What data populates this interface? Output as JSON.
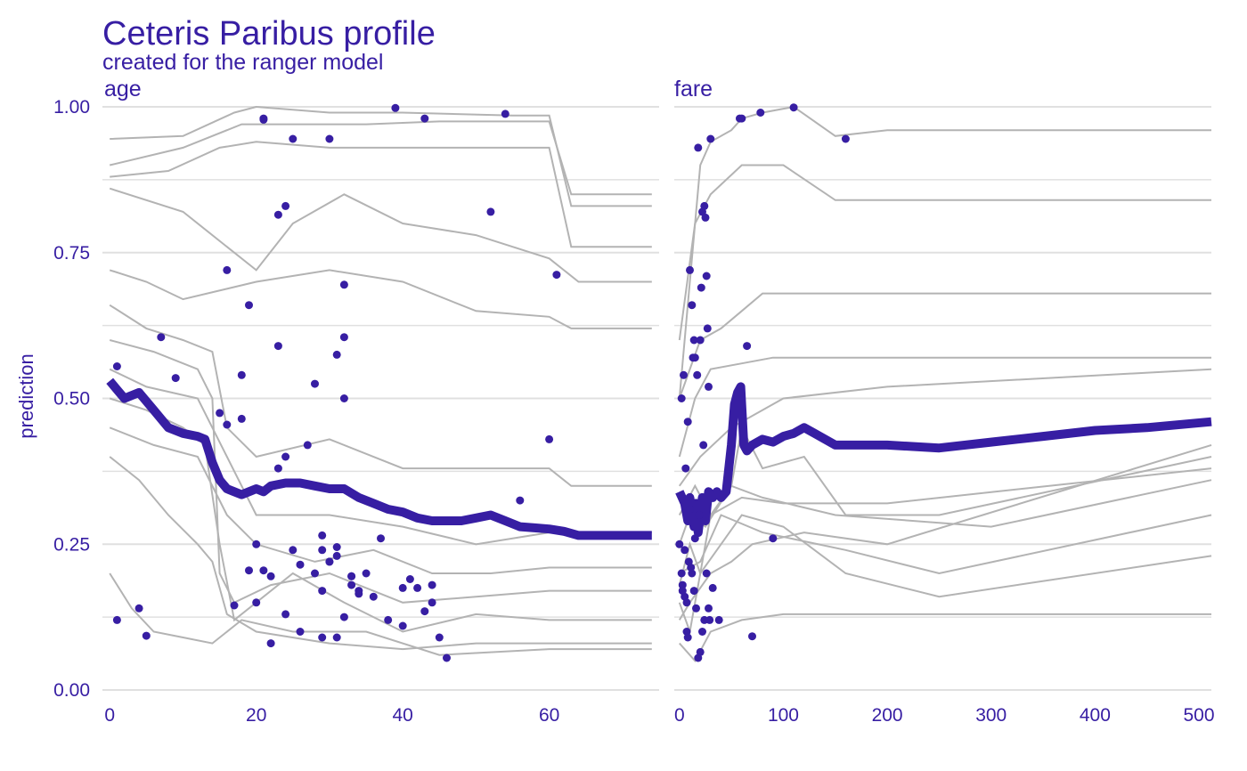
{
  "chart_data": {
    "type": "line",
    "title": "Ceteris Paribus profile",
    "subtitle": "created for the ranger model",
    "ylabel": "prediction",
    "colors": {
      "text": "#371EA3",
      "profile_line": "#371EA3",
      "ice_line": "#B3B3B3",
      "grid": "#E0E0E0"
    },
    "panels": [
      {
        "label": "age",
        "xlim": [
          -1,
          75
        ],
        "ylim": [
          0,
          1
        ],
        "x_ticks": [
          0,
          20,
          40,
          60
        ],
        "y_ticks": [
          "0.00",
          "0.25",
          "0.50",
          "0.75",
          "1.00"
        ],
        "mean_profile": {
          "x": [
            0,
            1,
            2,
            4,
            6,
            8,
            10,
            12,
            13,
            14,
            15,
            16,
            17,
            18,
            19,
            20,
            21,
            22,
            24,
            26,
            28,
            30,
            32,
            34,
            36,
            38,
            40,
            42,
            44,
            46,
            48,
            50,
            52,
            54,
            56,
            58,
            60,
            62,
            64,
            66,
            70,
            74
          ],
          "y": [
            0.53,
            0.515,
            0.5,
            0.51,
            0.48,
            0.45,
            0.44,
            0.435,
            0.43,
            0.39,
            0.36,
            0.345,
            0.34,
            0.335,
            0.34,
            0.345,
            0.34,
            0.35,
            0.355,
            0.355,
            0.35,
            0.345,
            0.345,
            0.33,
            0.32,
            0.31,
            0.305,
            0.295,
            0.29,
            0.29,
            0.29,
            0.295,
            0.3,
            0.29,
            0.28,
            0.278,
            0.276,
            0.272,
            0.265,
            0.265,
            0.265,
            0.265
          ]
        },
        "ice_sample": [
          {
            "x": [
              0,
              10,
              17,
              20,
              30,
              40,
              55,
              60,
              63,
              74
            ],
            "y": [
              0.945,
              0.95,
              0.99,
              1.0,
              0.99,
              0.99,
              0.985,
              0.985,
              0.83,
              0.83
            ]
          },
          {
            "x": [
              0,
              10,
              18,
              25,
              35,
              45,
              60,
              63,
              74
            ],
            "y": [
              0.9,
              0.93,
              0.97,
              0.97,
              0.97,
              0.975,
              0.975,
              0.85,
              0.85
            ]
          },
          {
            "x": [
              0,
              8,
              15,
              20,
              30,
              40,
              50,
              60,
              63,
              74
            ],
            "y": [
              0.88,
              0.89,
              0.93,
              0.94,
              0.93,
              0.93,
              0.93,
              0.93,
              0.76,
              0.76
            ]
          },
          {
            "x": [
              0,
              10,
              20,
              25,
              32,
              40,
              50,
              60,
              64,
              74
            ],
            "y": [
              0.86,
              0.82,
              0.72,
              0.8,
              0.85,
              0.8,
              0.78,
              0.74,
              0.7,
              0.7
            ]
          },
          {
            "x": [
              0,
              5,
              10,
              14,
              16,
              20,
              30,
              40,
              50,
              60,
              63,
              74
            ],
            "y": [
              0.66,
              0.62,
              0.6,
              0.58,
              0.45,
              0.4,
              0.43,
              0.38,
              0.38,
              0.38,
              0.35,
              0.35
            ]
          },
          {
            "x": [
              0,
              6,
              12,
              14,
              15,
              17,
              22,
              30,
              40,
              50,
              60,
              63,
              74
            ],
            "y": [
              0.6,
              0.58,
              0.55,
              0.5,
              0.2,
              0.15,
              0.18,
              0.2,
              0.15,
              0.16,
              0.17,
              0.17,
              0.17
            ]
          },
          {
            "x": [
              0,
              5,
              10,
              13,
              15,
              17,
              25,
              32,
              40,
              50,
              60,
              63,
              74
            ],
            "y": [
              0.5,
              0.48,
              0.45,
              0.42,
              0.25,
              0.12,
              0.2,
              0.15,
              0.1,
              0.13,
              0.12,
              0.12,
              0.12
            ]
          },
          {
            "x": [
              0,
              4,
              8,
              12,
              14,
              16,
              20,
              30,
              40,
              50,
              60,
              63,
              74
            ],
            "y": [
              0.4,
              0.36,
              0.3,
              0.25,
              0.22,
              0.13,
              0.1,
              0.08,
              0.07,
              0.08,
              0.08,
              0.08,
              0.08
            ]
          },
          {
            "x": [
              0,
              3,
              6,
              10,
              14,
              18,
              25,
              35,
              45,
              60,
              63,
              74
            ],
            "y": [
              0.2,
              0.14,
              0.1,
              0.09,
              0.08,
              0.12,
              0.1,
              0.1,
              0.06,
              0.07,
              0.07,
              0.07
            ]
          },
          {
            "x": [
              0,
              5,
              10,
              20,
              30,
              40,
              50,
              60,
              63,
              74
            ],
            "y": [
              0.72,
              0.7,
              0.67,
              0.7,
              0.72,
              0.7,
              0.65,
              0.64,
              0.62,
              0.62
            ]
          },
          {
            "x": [
              0,
              5,
              12,
              16,
              20,
              30,
              40,
              50,
              60,
              63,
              74
            ],
            "y": [
              0.55,
              0.52,
              0.5,
              0.4,
              0.3,
              0.3,
              0.28,
              0.25,
              0.27,
              0.27,
              0.27
            ]
          },
          {
            "x": [
              0,
              6,
              12,
              16,
              20,
              28,
              36,
              44,
              52,
              60,
              63,
              74
            ],
            "y": [
              0.45,
              0.42,
              0.4,
              0.3,
              0.25,
              0.22,
              0.24,
              0.2,
              0.2,
              0.21,
              0.21,
              0.21
            ]
          }
        ],
        "observations": {
          "x": [
            1,
            4,
            5,
            7,
            9,
            15,
            16,
            16,
            18,
            18,
            19,
            20,
            21,
            23,
            23,
            24,
            25,
            25,
            27,
            28,
            29,
            29,
            30,
            31,
            32,
            32,
            33,
            34,
            37,
            39,
            40,
            41,
            43,
            44,
            45,
            46,
            52,
            54,
            56,
            60,
            61,
            17,
            19,
            21,
            22,
            24,
            26,
            28,
            30,
            31,
            32,
            33,
            35,
            38,
            40,
            42,
            43,
            23,
            24,
            30,
            32,
            1,
            21,
            20,
            26,
            31,
            33,
            34,
            29,
            31,
            22,
            36,
            29,
            44
          ],
          "y": [
            0.12,
            0.14,
            0.093,
            0.605,
            0.535,
            0.475,
            0.455,
            0.72,
            0.54,
            0.465,
            0.66,
            0.25,
            0.98,
            0.815,
            0.59,
            0.83,
            0.945,
            0.24,
            0.42,
            0.525,
            0.265,
            0.24,
            0.945,
            0.575,
            0.695,
            0.605,
            0.195,
            0.165,
            0.26,
            0.998,
            0.11,
            0.19,
            0.98,
            0.15,
            0.09,
            0.055,
            0.82,
            0.988,
            0.325,
            0.43,
            0.712,
            0.145,
            0.205,
            0.205,
            0.195,
            0.13,
            0.215,
            0.2,
            0.22,
            0.23,
            0.125,
            0.195,
            0.2,
            0.12,
            0.175,
            0.175,
            0.135,
            0.38,
            0.4,
            0.22,
            0.5,
            0.555,
            0.978,
            0.15,
            0.1,
            0.09,
            0.18,
            0.17,
            0.17,
            0.245,
            0.08,
            0.16,
            0.09,
            0.18
          ]
        }
      },
      {
        "label": "fare",
        "xlim": [
          -5,
          512
        ],
        "ylim": [
          0,
          1
        ],
        "x_ticks": [
          0,
          100,
          200,
          300,
          400,
          500
        ],
        "mean_profile": {
          "x": [
            0,
            5,
            8,
            10,
            12,
            14,
            16,
            18,
            20,
            22,
            25,
            28,
            32,
            36,
            40,
            45,
            50,
            53,
            56,
            59,
            62,
            65,
            70,
            80,
            90,
            100,
            110,
            120,
            130,
            150,
            200,
            250,
            300,
            350,
            400,
            450,
            512
          ],
          "y": [
            0.34,
            0.32,
            0.29,
            0.33,
            0.3,
            0.28,
            0.32,
            0.27,
            0.3,
            0.33,
            0.29,
            0.34,
            0.33,
            0.34,
            0.33,
            0.34,
            0.42,
            0.49,
            0.51,
            0.52,
            0.42,
            0.41,
            0.42,
            0.43,
            0.425,
            0.435,
            0.44,
            0.45,
            0.44,
            0.42,
            0.42,
            0.415,
            0.425,
            0.435,
            0.445,
            0.45,
            0.46
          ]
        },
        "ice_sample": [
          {
            "x": [
              0,
              10,
              20,
              30,
              50,
              60,
              80,
              110,
              150,
              200,
              300,
              512
            ],
            "y": [
              0.5,
              0.7,
              0.9,
              0.94,
              0.96,
              0.98,
              0.99,
              1.0,
              0.95,
              0.96,
              0.96,
              0.96
            ]
          },
          {
            "x": [
              0,
              15,
              30,
              60,
              100,
              150,
              512
            ],
            "y": [
              0.6,
              0.8,
              0.85,
              0.9,
              0.9,
              0.84,
              0.84
            ]
          },
          {
            "x": [
              0,
              20,
              40,
              60,
              80,
              512
            ],
            "y": [
              0.5,
              0.6,
              0.62,
              0.65,
              0.68,
              0.68
            ]
          },
          {
            "x": [
              0,
              15,
              30,
              60,
              90,
              512
            ],
            "y": [
              0.4,
              0.5,
              0.55,
              0.56,
              0.57,
              0.57
            ]
          },
          {
            "x": [
              0,
              10,
              20,
              30,
              50,
              60,
              80,
              120,
              160,
              250,
              512
            ],
            "y": [
              0.18,
              0.25,
              0.2,
              0.3,
              0.35,
              0.45,
              0.38,
              0.4,
              0.3,
              0.3,
              0.4
            ]
          },
          {
            "x": [
              0,
              10,
              20,
              40,
              60,
              100,
              160,
              250,
              512
            ],
            "y": [
              0.15,
              0.1,
              0.2,
              0.25,
              0.3,
              0.28,
              0.2,
              0.16,
              0.23
            ]
          },
          {
            "x": [
              0,
              15,
              30,
              60,
              100,
              512
            ],
            "y": [
              0.08,
              0.05,
              0.1,
              0.12,
              0.13,
              0.13
            ]
          },
          {
            "x": [
              0,
              10,
              25,
              50,
              80,
              150,
              300,
              512
            ],
            "y": [
              0.25,
              0.3,
              0.28,
              0.35,
              0.33,
              0.3,
              0.28,
              0.36
            ]
          },
          {
            "x": [
              0,
              20,
              50,
              100,
              200,
              512
            ],
            "y": [
              0.35,
              0.4,
              0.45,
              0.5,
              0.52,
              0.55
            ]
          },
          {
            "x": [
              0,
              20,
              40,
              80,
              160,
              250,
              512
            ],
            "y": [
              0.2,
              0.22,
              0.3,
              0.27,
              0.24,
              0.2,
              0.3
            ]
          },
          {
            "x": [
              0,
              10,
              30,
              50,
              70,
              120,
              200,
              512
            ],
            "y": [
              0.12,
              0.15,
              0.2,
              0.22,
              0.25,
              0.27,
              0.25,
              0.42
            ]
          },
          {
            "x": [
              0,
              15,
              30,
              60,
              100,
              200,
              512
            ],
            "y": [
              0.3,
              0.35,
              0.3,
              0.33,
              0.32,
              0.32,
              0.38
            ]
          }
        ],
        "observations": {
          "x": [
            0,
            2,
            3,
            5,
            7,
            8,
            10,
            12,
            14,
            15,
            18,
            20,
            22,
            24,
            26,
            28,
            30,
            32,
            38,
            58,
            60,
            65,
            70,
            78,
            90,
            110,
            160,
            2,
            4,
            6,
            8,
            10,
            12,
            14,
            16,
            18,
            20,
            22,
            24,
            26,
            28,
            5,
            9,
            13,
            17,
            21,
            25,
            29,
            3,
            7,
            11,
            15,
            19,
            23,
            27
          ],
          "y": [
            0.25,
            0.2,
            0.18,
            0.16,
            0.1,
            0.09,
            0.72,
            0.66,
            0.6,
            0.57,
            0.93,
            0.6,
            0.82,
            0.83,
            0.71,
            0.52,
            0.945,
            0.175,
            0.12,
            0.98,
            0.98,
            0.59,
            0.092,
            0.99,
            0.26,
            0.999,
            0.945,
            0.5,
            0.54,
            0.38,
            0.46,
            0.31,
            0.2,
            0.17,
            0.14,
            0.055,
            0.065,
            0.1,
            0.12,
            0.2,
            0.14,
            0.24,
            0.22,
            0.57,
            0.54,
            0.69,
            0.81,
            0.12,
            0.17,
            0.15,
            0.21,
            0.26,
            0.3,
            0.42,
            0.62
          ]
        }
      }
    ]
  }
}
